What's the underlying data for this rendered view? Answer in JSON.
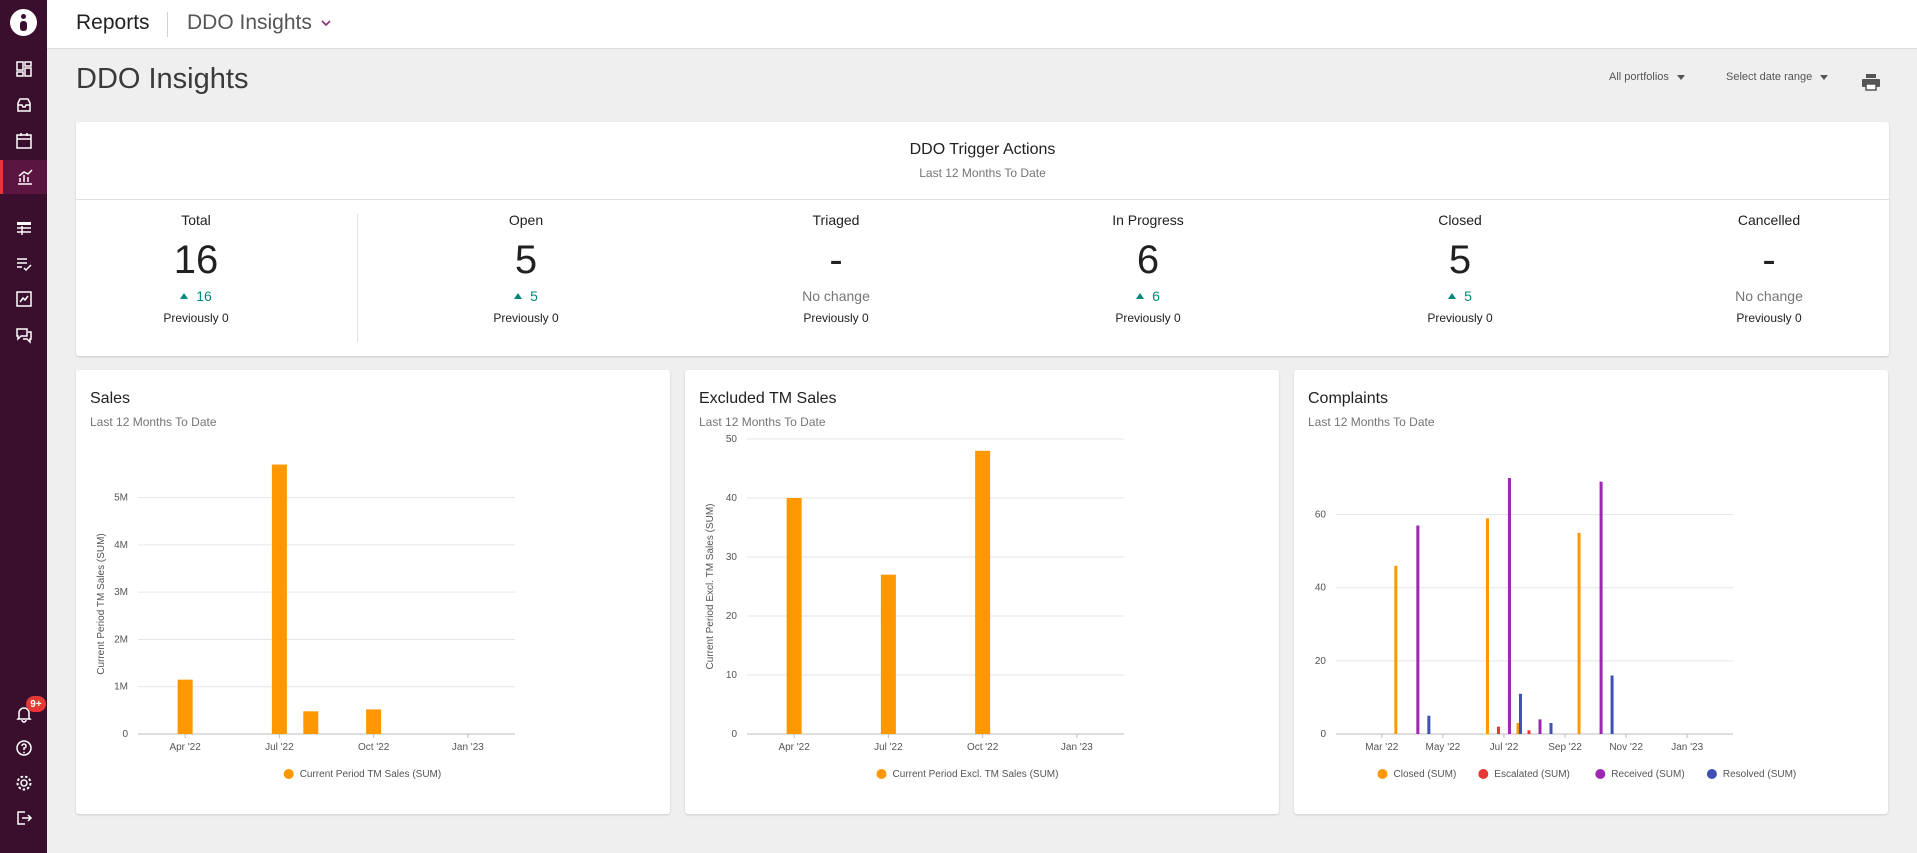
{
  "topbar": {
    "title": "Reports",
    "report_select": "DDO Insights"
  },
  "page": {
    "title": "DDO Insights"
  },
  "filters": {
    "portfolio": "All portfolios",
    "date_range": "Select date range"
  },
  "sidebar": {
    "notification_badge": "9+"
  },
  "trigger_actions": {
    "title": "DDO Trigger Actions",
    "subtitle": "Last 12 Months To Date",
    "metrics": [
      {
        "label": "Total",
        "value": "16",
        "change": "16",
        "trend": "up",
        "previous": "Previously 0"
      },
      {
        "label": "Open",
        "value": "5",
        "change": "5",
        "trend": "up",
        "previous": "Previously 0"
      },
      {
        "label": "Triaged",
        "value": "-",
        "change": "No change",
        "trend": "none",
        "previous": "Previously 0"
      },
      {
        "label": "In Progress",
        "value": "6",
        "change": "6",
        "trend": "up",
        "previous": "Previously 0"
      },
      {
        "label": "Closed",
        "value": "5",
        "change": "5",
        "trend": "up",
        "previous": "Previously 0"
      },
      {
        "label": "Cancelled",
        "value": "-",
        "change": "No change",
        "trend": "none",
        "previous": "Previously 0"
      }
    ]
  },
  "chart_data": [
    {
      "type": "bar",
      "title": "Sales",
      "subtitle": "Last 12 Months To Date",
      "xlabel": "",
      "ylabel": "Current Period TM Sales (SUM)",
      "x_ticks": [
        "Apr '22",
        "Jul '22",
        "Oct '22",
        "Jan '23"
      ],
      "y_ticks": [
        "0",
        "1M",
        "2M",
        "3M",
        "4M",
        "5M"
      ],
      "ylim": [
        0,
        5500000
      ],
      "months": [
        "2022-03",
        "2022-04",
        "2022-05",
        "2022-06",
        "2022-07",
        "2022-08",
        "2022-09",
        "2022-10",
        "2022-11",
        "2022-12",
        "2023-01",
        "2023-02"
      ],
      "series": [
        {
          "name": "Current Period TM Sales (SUM)",
          "color": "#ff9800",
          "values": [
            0,
            1150000,
            0,
            0,
            5700000,
            480000,
            0,
            520000,
            0,
            0,
            0,
            0
          ]
        }
      ],
      "legend": "bottom"
    },
    {
      "type": "bar",
      "title": "Excluded TM Sales",
      "subtitle": "Last 12 Months To Date",
      "xlabel": "",
      "ylabel": "Current Period Excl. TM Sales (SUM)",
      "x_ticks": [
        "Apr '22",
        "Jul '22",
        "Oct '22",
        "Jan '23"
      ],
      "y_ticks": [
        "0",
        "10",
        "20",
        "30",
        "40",
        "50"
      ],
      "ylim": [
        0,
        50
      ],
      "months": [
        "2022-03",
        "2022-04",
        "2022-05",
        "2022-06",
        "2022-07",
        "2022-08",
        "2022-09",
        "2022-10",
        "2022-11",
        "2022-12",
        "2023-01",
        "2023-02"
      ],
      "series": [
        {
          "name": "Current Period Excl. TM Sales (SUM)",
          "color": "#ff9800",
          "values": [
            0,
            40,
            0,
            0,
            27,
            0,
            0,
            48,
            0,
            0,
            0,
            0
          ]
        }
      ],
      "legend": "bottom"
    },
    {
      "type": "bar",
      "title": "Complaints",
      "subtitle": "Last 12 Months To Date",
      "xlabel": "",
      "ylabel": "",
      "x_ticks": [
        "Mar '22",
        "May '22",
        "Jul '22",
        "Sep '22",
        "Nov '22",
        "Jan '23"
      ],
      "y_ticks": [
        "0",
        "20",
        "40",
        "60"
      ],
      "ylim": [
        0,
        70
      ],
      "months": [
        "2022-02",
        "2022-03",
        "2022-04",
        "2022-05",
        "2022-06",
        "2022-07",
        "2022-08",
        "2022-09",
        "2022-10",
        "2022-11",
        "2022-12",
        "2023-01",
        "2023-02"
      ],
      "series": [
        {
          "name": "Closed (SUM)",
          "color": "#ff9800",
          "values": [
            0,
            0,
            46,
            0,
            0,
            59,
            3,
            0,
            55,
            0,
            0,
            0,
            0
          ]
        },
        {
          "name": "Escalated (SUM)",
          "color": "#e53935",
          "values": [
            0,
            0,
            0,
            0,
            0,
            2,
            1,
            0,
            0,
            0,
            0,
            0,
            0
          ]
        },
        {
          "name": "Received (SUM)",
          "color": "#9c27b0",
          "values": [
            0,
            0,
            57,
            0,
            0,
            70,
            4,
            0,
            69,
            0,
            0,
            0,
            0
          ]
        },
        {
          "name": "Resolved (SUM)",
          "color": "#3f51b5",
          "values": [
            0,
            0,
            5,
            0,
            0,
            11,
            3,
            0,
            16,
            0,
            0,
            0,
            0
          ]
        }
      ],
      "legend": "bottom"
    }
  ]
}
